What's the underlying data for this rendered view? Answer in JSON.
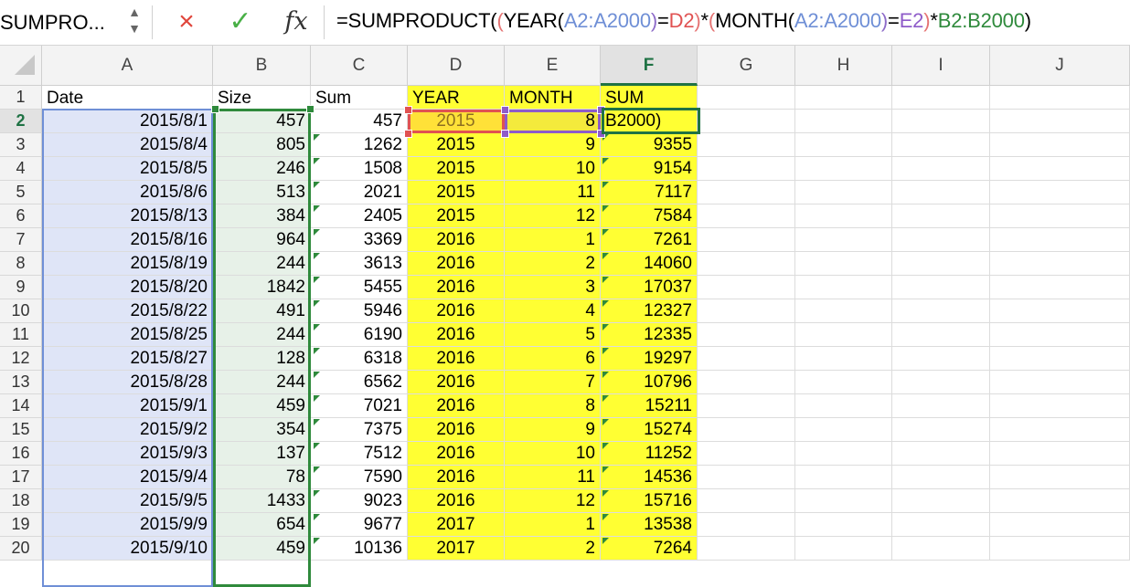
{
  "name_box": {
    "value": "SUMPRO..."
  },
  "icons": {
    "cancel": "×",
    "enter": "✓",
    "fx": "fx",
    "stepper_up": "▲",
    "stepper_down": "▼"
  },
  "formula": {
    "segments": [
      {
        "text": "=SUMPRODUCT(",
        "color": "#000000"
      },
      {
        "text": "(",
        "color": "#e57373"
      },
      {
        "text": "YEAR(",
        "color": "#000000"
      },
      {
        "text": "A2:A2000",
        "color": "#6f8fd6"
      },
      {
        "text": ")",
        "color": "#8e6cc9"
      },
      {
        "text": "=",
        "color": "#000000"
      },
      {
        "text": "D2",
        "color": "#e05252"
      },
      {
        "text": ")",
        "color": "#e57373"
      },
      {
        "text": "*",
        "color": "#000000"
      },
      {
        "text": "(",
        "color": "#e57373"
      },
      {
        "text": "MONTH(",
        "color": "#000000"
      },
      {
        "text": "A2:A2000",
        "color": "#6f8fd6"
      },
      {
        "text": ")",
        "color": "#8e6cc9"
      },
      {
        "text": "=",
        "color": "#000000"
      },
      {
        "text": "E2",
        "color": "#8e5bc9"
      },
      {
        "text": ")",
        "color": "#e57373"
      },
      {
        "text": "*",
        "color": "#000000"
      },
      {
        "text": "B2:B2000",
        "color": "#2f8a3c"
      },
      {
        "text": ")",
        "color": "#000000"
      }
    ]
  },
  "columns": [
    "A",
    "B",
    "C",
    "D",
    "E",
    "F",
    "G",
    "H",
    "I",
    "J"
  ],
  "active_column": "F",
  "active_row": 2,
  "colors": {
    "yellow": "#ffff33",
    "blue_range": "#dfe5f7",
    "green_range": "#e7f1e8",
    "green_border": "#2f8a3c",
    "red_ref": "#e05252",
    "purple_ref": "#8e5bc9",
    "blue_ref": "#6f8fd6"
  },
  "header_row": {
    "A": "Date",
    "B": "Size",
    "C": "Sum",
    "D": "YEAR",
    "E": "MONTH",
    "F": "SUM"
  },
  "rows": [
    {
      "row": 2,
      "date": "2015/8/1",
      "size": "457",
      "sum": "457",
      "year": "2015",
      "month": "8",
      "total": "B2000)"
    },
    {
      "row": 3,
      "date": "2015/8/4",
      "size": "805",
      "sum": "1262",
      "year": "2015",
      "month": "9",
      "total": "9355"
    },
    {
      "row": 4,
      "date": "2015/8/5",
      "size": "246",
      "sum": "1508",
      "year": "2015",
      "month": "10",
      "total": "9154"
    },
    {
      "row": 5,
      "date": "2015/8/6",
      "size": "513",
      "sum": "2021",
      "year": "2015",
      "month": "11",
      "total": "7117"
    },
    {
      "row": 6,
      "date": "2015/8/13",
      "size": "384",
      "sum": "2405",
      "year": "2015",
      "month": "12",
      "total": "7584"
    },
    {
      "row": 7,
      "date": "2015/8/16",
      "size": "964",
      "sum": "3369",
      "year": "2016",
      "month": "1",
      "total": "7261"
    },
    {
      "row": 8,
      "date": "2015/8/19",
      "size": "244",
      "sum": "3613",
      "year": "2016",
      "month": "2",
      "total": "14060"
    },
    {
      "row": 9,
      "date": "2015/8/20",
      "size": "1842",
      "sum": "5455",
      "year": "2016",
      "month": "3",
      "total": "17037"
    },
    {
      "row": 10,
      "date": "2015/8/22",
      "size": "491",
      "sum": "5946",
      "year": "2016",
      "month": "4",
      "total": "12327"
    },
    {
      "row": 11,
      "date": "2015/8/25",
      "size": "244",
      "sum": "6190",
      "year": "2016",
      "month": "5",
      "total": "12335"
    },
    {
      "row": 12,
      "date": "2015/8/27",
      "size": "128",
      "sum": "6318",
      "year": "2016",
      "month": "6",
      "total": "19297"
    },
    {
      "row": 13,
      "date": "2015/8/28",
      "size": "244",
      "sum": "6562",
      "year": "2016",
      "month": "7",
      "total": "10796"
    },
    {
      "row": 14,
      "date": "2015/9/1",
      "size": "459",
      "sum": "7021",
      "year": "2016",
      "month": "8",
      "total": "15211"
    },
    {
      "row": 15,
      "date": "2015/9/2",
      "size": "354",
      "sum": "7375",
      "year": "2016",
      "month": "9",
      "total": "15274"
    },
    {
      "row": 16,
      "date": "2015/9/3",
      "size": "137",
      "sum": "7512",
      "year": "2016",
      "month": "10",
      "total": "11252"
    },
    {
      "row": 17,
      "date": "2015/9/4",
      "size": "78",
      "sum": "7590",
      "year": "2016",
      "month": "11",
      "total": "14536"
    },
    {
      "row": 18,
      "date": "2015/9/5",
      "size": "1433",
      "sum": "9023",
      "year": "2016",
      "month": "12",
      "total": "15716"
    },
    {
      "row": 19,
      "date": "2015/9/9",
      "size": "654",
      "sum": "9677",
      "year": "2017",
      "month": "1",
      "total": "13538"
    },
    {
      "row": 20,
      "date": "2015/9/10",
      "size": "459",
      "sum": "10136",
      "year": "2017",
      "month": "2",
      "total": "7264"
    }
  ]
}
